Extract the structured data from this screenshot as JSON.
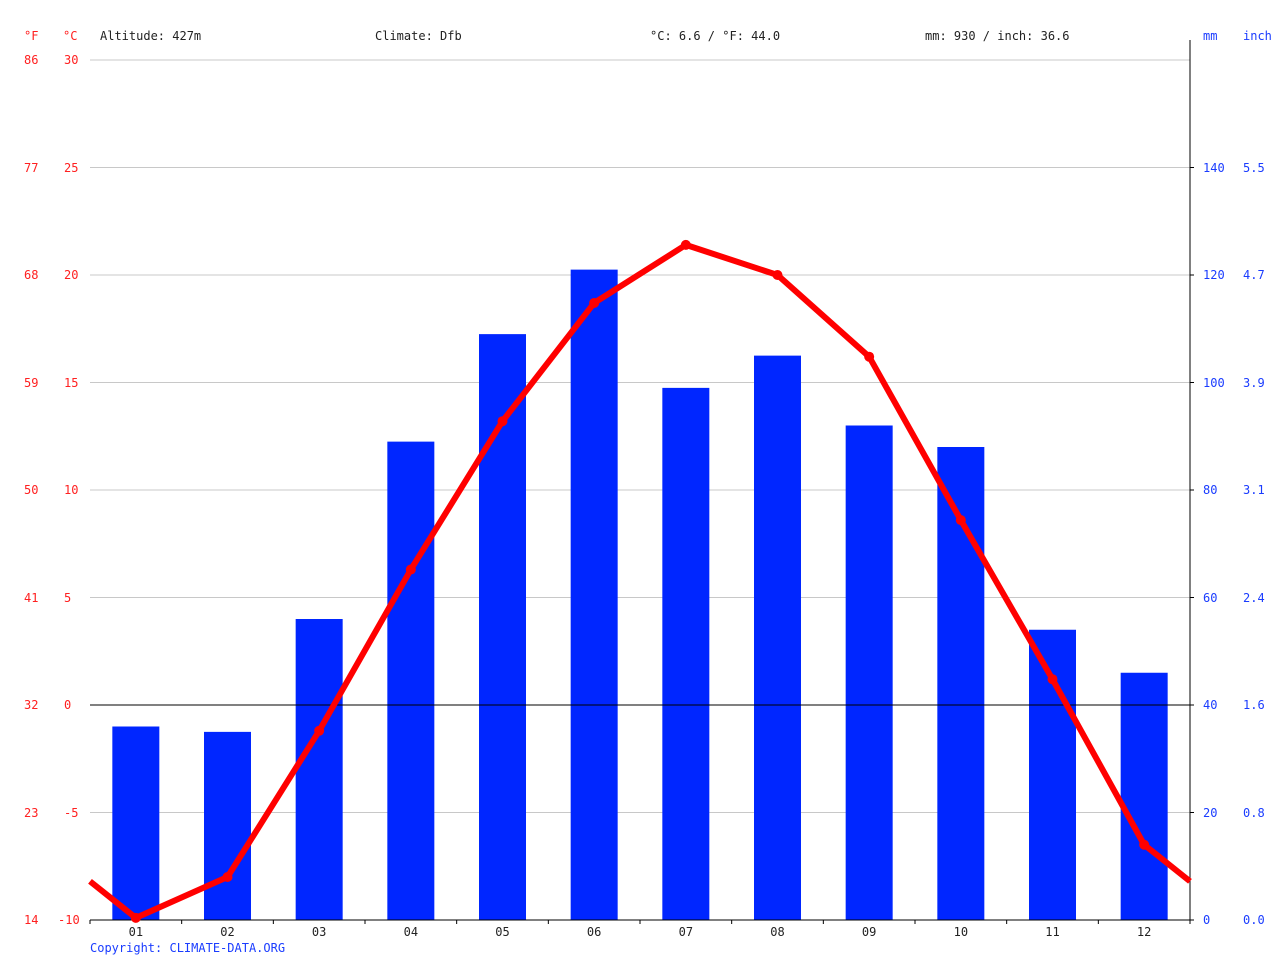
{
  "header": {
    "f_unit": "°F",
    "c_unit": "°C",
    "altitude": "Altitude: 427m",
    "climate": "Climate: Dfb",
    "temp_summary": "°C: 6.6 / °F: 44.0",
    "precip_summary": "mm: 930 / inch: 36.6",
    "mm_unit": "mm",
    "inch_unit": "inch"
  },
  "footer": {
    "copyright": "Copyright: CLIMATE-DATA.ORG"
  },
  "colors": {
    "bar": "#0026ff",
    "line": "#ff0000",
    "left_axis_text": "#ff2020",
    "right_axis_text": "#1a3cff",
    "grid": "#c8c8c8"
  },
  "chart_data": {
    "type": "bar+line",
    "title": "",
    "categories": [
      "01",
      "02",
      "03",
      "04",
      "05",
      "06",
      "07",
      "08",
      "09",
      "10",
      "11",
      "12"
    ],
    "series": [
      {
        "name": "Precipitation (mm)",
        "type": "bar",
        "axis": "right",
        "values": [
          36,
          35,
          56,
          89,
          109,
          121,
          99,
          105,
          92,
          88,
          54,
          46
        ]
      },
      {
        "name": "Temperature (°C)",
        "type": "line",
        "axis": "left",
        "values": [
          -9.9,
          -8.0,
          -1.2,
          6.3,
          13.2,
          18.7,
          21.4,
          20.0,
          16.2,
          8.6,
          1.2,
          -6.5
        ]
      }
    ],
    "left_axis_c_ticks": [
      "30",
      "25",
      "20",
      "15",
      "10",
      "5",
      "0",
      "-5",
      "-10"
    ],
    "left_axis_f_ticks": [
      "86",
      "77",
      "68",
      "59",
      "50",
      "41",
      "32",
      "23",
      "14"
    ],
    "right_axis_mm_ticks": [
      "140",
      "120",
      "100",
      "80",
      "60",
      "40",
      "20",
      "0"
    ],
    "right_axis_inch_ticks": [
      "5.5",
      "4.7",
      "3.9",
      "3.1",
      "2.4",
      "1.6",
      "0.8",
      "0.0"
    ],
    "ylim_c": [
      -10,
      30
    ],
    "ylim_mm": [
      0,
      160
    ],
    "grid": true,
    "legend": "none"
  }
}
